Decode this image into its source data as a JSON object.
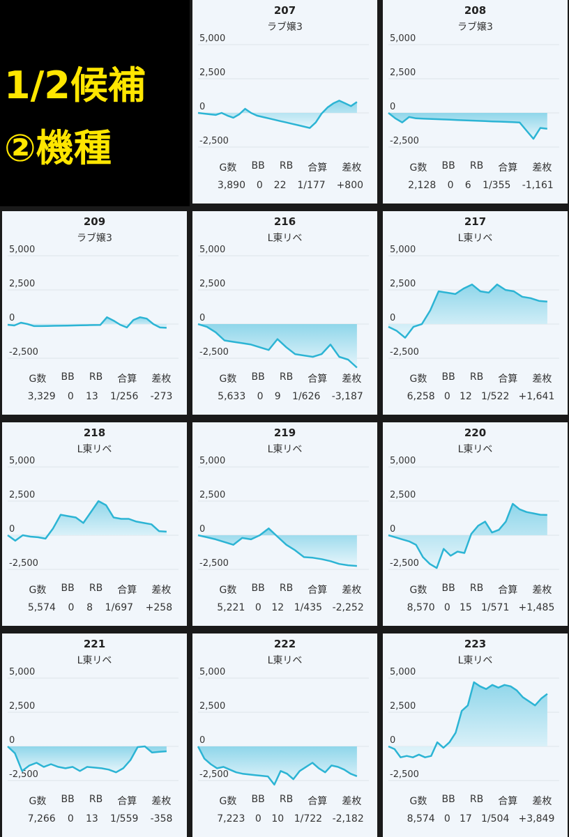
{
  "banner": {
    "line1": "1/2候補",
    "line2": "②機種"
  },
  "stat_headers": [
    "G数",
    "BB",
    "RB",
    "合算",
    "差枚"
  ],
  "ytick_labels": [
    "5,000",
    "2,500",
    "0",
    "-2,500"
  ],
  "colors": {
    "line": "#2cb4d4",
    "fill_top": "#8fd6ea",
    "fill_bottom": "#e6f5fb",
    "card_bg": "#f1f6fb",
    "banner_text": "#FFE600"
  },
  "chart_data": [
    {
      "type": "area",
      "number": "207",
      "model": "ラブ嬢3",
      "ylim": [
        -2500,
        5000
      ],
      "y": [
        0,
        -50,
        -100,
        -150,
        0,
        -200,
        -350,
        -100,
        300,
        0,
        -200,
        -300,
        -400,
        -500,
        -600,
        -700,
        -800,
        -900,
        -1000,
        -1100,
        -700,
        -50,
        400,
        700,
        900,
        700,
        500,
        800
      ],
      "stats": {
        "games": "3,890",
        "bb": "0",
        "rb": "22",
        "combined": "1/177",
        "diff": "+800"
      }
    },
    {
      "type": "area",
      "number": "208",
      "model": "ラブ嬢3",
      "ylim": [
        -2500,
        5000
      ],
      "y": [
        0,
        -400,
        -700,
        -300,
        -400,
        -420,
        -440,
        -460,
        -480,
        -500,
        -520,
        -540,
        -560,
        -580,
        -600,
        -620,
        -640,
        -660,
        -680,
        -700,
        -1300,
        -1900,
        -1100,
        -1161
      ],
      "stats": {
        "games": "2,128",
        "bb": "0",
        "rb": "6",
        "combined": "1/355",
        "diff": "-1,161"
      }
    },
    {
      "type": "area",
      "number": "209",
      "model": "ラブ嬢3",
      "ylim": [
        -2500,
        5000
      ],
      "y": [
        -50,
        -100,
        100,
        0,
        -150,
        -150,
        -140,
        -130,
        -120,
        -110,
        -100,
        -90,
        -80,
        -70,
        -60,
        500,
        250,
        -50,
        -250,
        300,
        500,
        400,
        0,
        -250,
        -273
      ],
      "stats": {
        "games": "3,329",
        "bb": "0",
        "rb": "13",
        "combined": "1/256",
        "diff": "-273"
      }
    },
    {
      "type": "area",
      "number": "216",
      "model": "L東リベ",
      "ylim": [
        -2500,
        5000
      ],
      "y": [
        0,
        -200,
        -600,
        -1200,
        -1300,
        -1400,
        -1500,
        -1700,
        -1900,
        -1100,
        -1700,
        -2200,
        -2300,
        -2400,
        -2200,
        -1500,
        -2400,
        -2600,
        -3187
      ],
      "stats": {
        "games": "5,633",
        "bb": "0",
        "rb": "9",
        "combined": "1/626",
        "diff": "-3,187"
      }
    },
    {
      "type": "area",
      "number": "217",
      "model": "L東リベ",
      "ylim": [
        -2500,
        5000
      ],
      "y": [
        -200,
        -500,
        -1000,
        -200,
        0,
        1000,
        2400,
        2300,
        2200,
        2600,
        2900,
        2400,
        2300,
        2900,
        2500,
        2400,
        2000,
        1900,
        1700,
        1641
      ],
      "stats": {
        "games": "6,258",
        "bb": "0",
        "rb": "12",
        "combined": "1/522",
        "diff": "+1,641"
      }
    },
    {
      "type": "area",
      "number": "218",
      "model": "L東リベ",
      "ylim": [
        -2500,
        5000
      ],
      "y": [
        0,
        -400,
        0,
        -100,
        -150,
        -250,
        500,
        1500,
        1400,
        1300,
        900,
        1700,
        2500,
        2200,
        1300,
        1200,
        1200,
        1000,
        900,
        800,
        300,
        258
      ],
      "stats": {
        "games": "5,574",
        "bb": "0",
        "rb": "8",
        "combined": "1/697",
        "diff": "+258"
      }
    },
    {
      "type": "area",
      "number": "219",
      "model": "L東リベ",
      "ylim": [
        -2500,
        5000
      ],
      "y": [
        0,
        -150,
        -300,
        -500,
        -700,
        -200,
        -300,
        0,
        500,
        -100,
        -700,
        -1100,
        -1600,
        -1650,
        -1750,
        -1900,
        -2100,
        -2200,
        -2252
      ],
      "stats": {
        "games": "5,221",
        "bb": "0",
        "rb": "12",
        "combined": "1/435",
        "diff": "-2,252"
      }
    },
    {
      "type": "area",
      "number": "220",
      "model": "L東リベ",
      "ylim": [
        -2500,
        5000
      ],
      "y": [
        0,
        -150,
        -300,
        -450,
        -700,
        -1600,
        -2100,
        -2400,
        -1000,
        -1500,
        -1200,
        -1300,
        100,
        700,
        1000,
        200,
        400,
        1000,
        2300,
        1900,
        1700,
        1600,
        1500,
        1485
      ],
      "stats": {
        "games": "8,570",
        "bb": "0",
        "rb": "15",
        "combined": "1/571",
        "diff": "+1,485"
      }
    },
    {
      "type": "area",
      "number": "221",
      "model": "L東リベ",
      "ylim": [
        -2500,
        5000
      ],
      "y": [
        0,
        -500,
        -1800,
        -1400,
        -1200,
        -1500,
        -1300,
        -1500,
        -1600,
        -1500,
        -1800,
        -1500,
        -1550,
        -1600,
        -1700,
        -1900,
        -1600,
        -1000,
        -50,
        0,
        -450,
        -400,
        -358
      ],
      "stats": {
        "games": "7,266",
        "bb": "0",
        "rb": "13",
        "combined": "1/559",
        "diff": "-358"
      }
    },
    {
      "type": "area",
      "number": "222",
      "model": "L東リベ",
      "ylim": [
        -2500,
        5000
      ],
      "y": [
        0,
        -900,
        -1300,
        -1600,
        -1500,
        -1700,
        -1900,
        -2000,
        -2050,
        -2100,
        -2150,
        -2200,
        -2800,
        -1800,
        -2000,
        -2400,
        -1800,
        -1500,
        -1200,
        -1600,
        -1900,
        -1400,
        -1500,
        -1700,
        -2000,
        -2182
      ],
      "stats": {
        "games": "7,223",
        "bb": "0",
        "rb": "10",
        "combined": "1/722",
        "diff": "-2,182"
      }
    },
    {
      "type": "area",
      "number": "223",
      "model": "L東リベ",
      "ylim": [
        -2500,
        5000
      ],
      "y": [
        0,
        -200,
        -800,
        -700,
        -800,
        -600,
        -800,
        -700,
        300,
        -100,
        300,
        1000,
        2600,
        3000,
        4700,
        4400,
        4200,
        4500,
        4300,
        4500,
        4400,
        4100,
        3600,
        3300,
        3000,
        3500,
        3849
      ],
      "stats": {
        "games": "8,574",
        "bb": "0",
        "rb": "17",
        "combined": "1/504",
        "diff": "+3,849"
      }
    }
  ]
}
